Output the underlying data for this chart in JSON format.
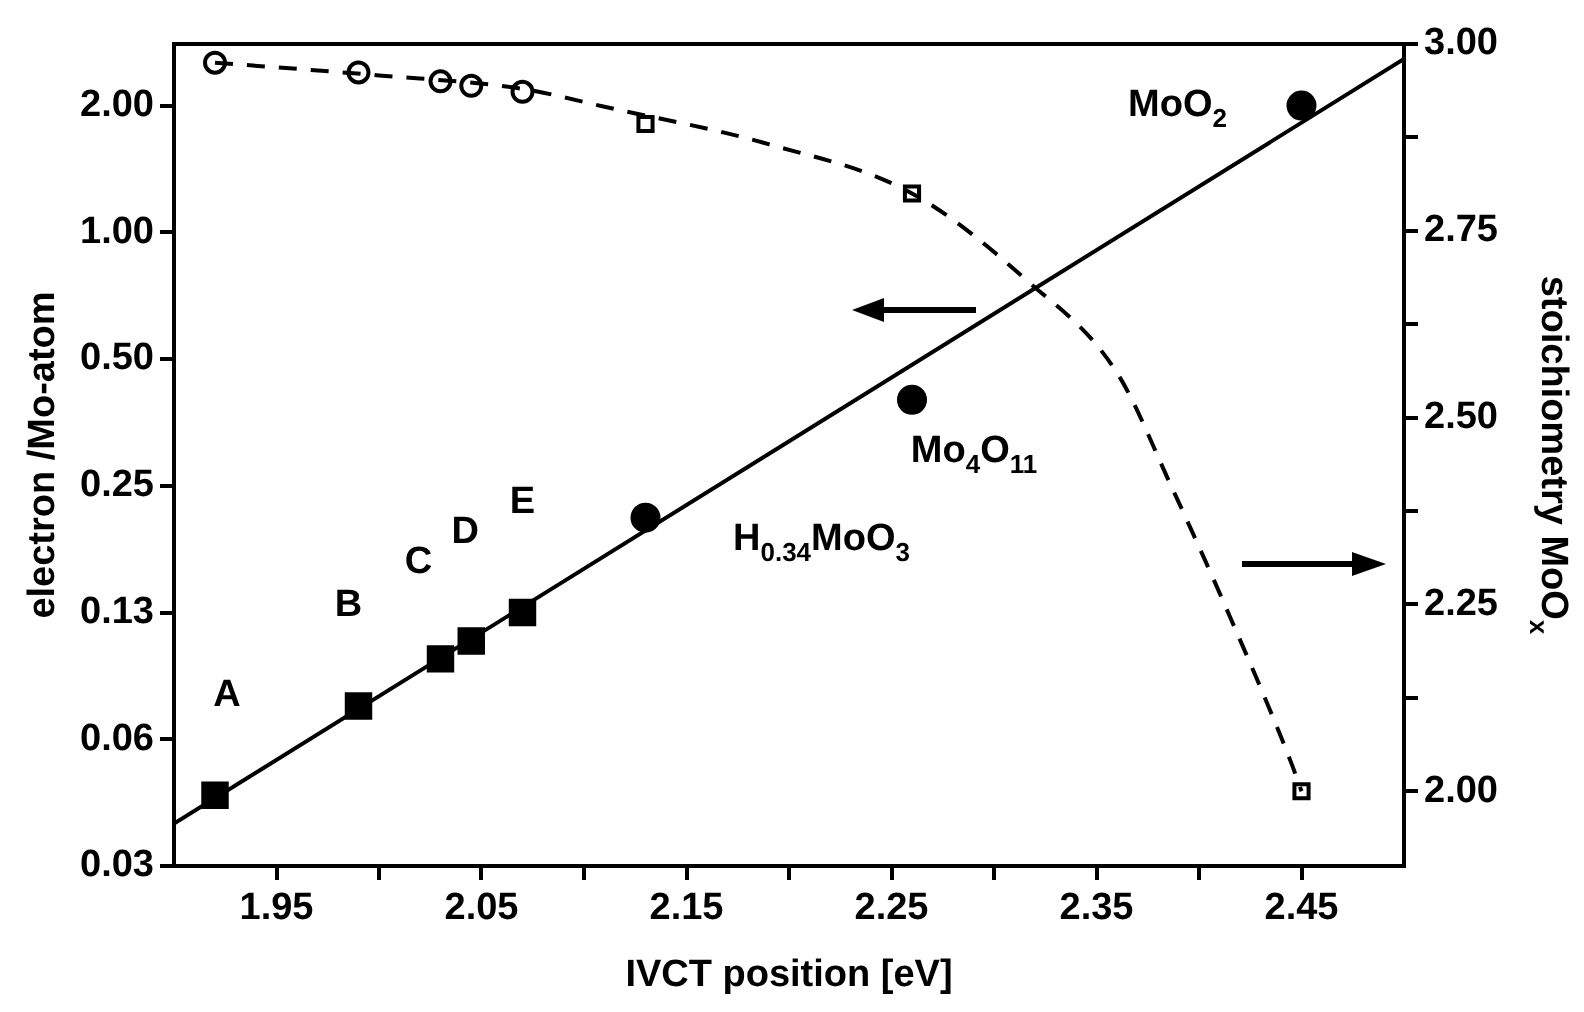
{
  "chart_data": {
    "type": "scatter",
    "xlabel": "IVCT position [eV]",
    "ylabel": "electron /Mo-atom",
    "y2label": "stoichiometry MoO$_{x}$",
    "xlim": [
      1.9,
      2.5
    ],
    "xticks": [
      1.95,
      {
        "value": 2.0,
        "label": null
      },
      2.05,
      {
        "value": 2.1,
        "label": null
      },
      2.15,
      {
        "value": 2.2,
        "label": null
      },
      2.25,
      {
        "value": 2.3,
        "label": null
      },
      2.35,
      {
        "value": 2.4,
        "label": null
      },
      2.45
    ],
    "ylim": [
      0.03125,
      2.8
    ],
    "yticks": [
      {
        "value": 0.03125,
        "label": "0.03"
      },
      {
        "value": 0.0625,
        "label": "0.06"
      },
      {
        "value": 0.125,
        "label": "0.13"
      },
      0.25,
      {
        "value": 0.5,
        "label": "0.50"
      },
      {
        "value": 1,
        "label": "1.00"
      },
      {
        "value": 2,
        "label": "2.00"
      }
    ],
    "y2lim": [
      1.9,
      3.0
    ],
    "y2ticks": [
      {
        "value": 2.0,
        "label": "2.00"
      },
      {
        "value": 2.125,
        "label": null
      },
      2.25,
      {
        "value": 2.375,
        "label": null
      },
      {
        "value": 2.5,
        "label": "2.50"
      },
      {
        "value": 2.625,
        "label": null
      },
      2.75,
      {
        "value": 2.875,
        "label": null
      },
      {
        "value": 3.0,
        "label": "3.00"
      }
    ],
    "log": "y",
    "grid": false,
    "legend": false,
    "series": [
      {
        "type": "line",
        "color": "#000000",
        "x": [
          1.9,
          2.5
        ],
        "values": [
          0.0394,
          2.58
        ],
        "marker": "none",
        "line_style": "solid"
      },
      {
        "type": "line",
        "color": "#000000",
        "axis": "y2",
        "x": [
          1.92,
          2.0,
          2.07,
          2.11,
          2.19,
          2.26,
          2.315,
          2.36,
          2.387,
          2.412,
          2.445,
          2.45
        ],
        "values": [
          2.975,
          2.958,
          2.94,
          2.916,
          2.866,
          2.8,
          2.686,
          2.56,
          2.405,
          2.253,
          2.038,
          2.0
        ],
        "marker": "none",
        "line_style": "dashed"
      },
      {
        "color": "#000000",
        "x": [
          1.92,
          1.99,
          2.03,
          2.045,
          2.07
        ],
        "values": [
          0.046,
          0.075,
          0.097,
          0.107,
          0.125
        ],
        "marker": "square"
      },
      {
        "color": "#000000",
        "x": [
          2.13,
          2.26,
          2.45
        ],
        "values": [
          0.21,
          0.4,
          2.0
        ],
        "marker": "circle"
      },
      {
        "color": "#000000",
        "axis": "y2",
        "x": [
          1.92,
          1.99,
          2.03,
          2.045,
          2.07
        ],
        "values": [
          2.975,
          2.962,
          2.95,
          2.944,
          2.936
        ],
        "marker": "circle"
      },
      {
        "color": "#000000",
        "axis": "y2",
        "x": [
          2.13,
          2.26,
          2.45
        ],
        "values": [
          2.893,
          2.8,
          2.0
        ],
        "marker": "square"
      }
    ],
    "annotations": [
      {
        "text": "A",
        "x": 1.92,
        "y": 0.046
      },
      {
        "text": "B",
        "x": 1.99,
        "y": 0.075
      },
      {
        "text": "C",
        "x": 2.03,
        "y": 0.097
      },
      {
        "text": "D",
        "x": 2.045,
        "y": 0.107
      },
      {
        "text": "E",
        "x": 2.07,
        "y": 0.125
      },
      {
        "text": "H$_{0.34}$MoO$_{3}$",
        "x": 2.13,
        "y": 0.21
      },
      {
        "text": "Mo$_{4}$O$_{11}$",
        "x": 2.26,
        "y": 0.4
      },
      {
        "text": "MoO$_{2}$",
        "x": 2.45,
        "y": 2.0
      }
    ]
  }
}
